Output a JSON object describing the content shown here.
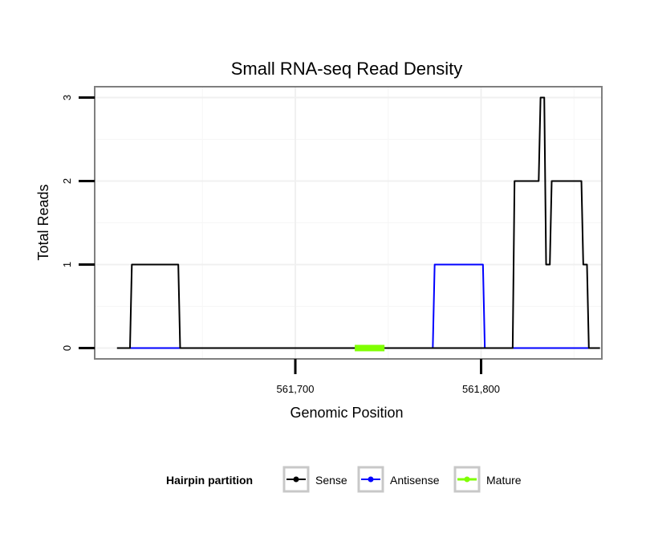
{
  "chart_data": {
    "type": "line",
    "title": "Small RNA-seq Read Density",
    "xlabel": "Genomic Position",
    "ylabel": "Total Reads",
    "xlim": [
      561592,
      561865
    ],
    "ylim": [
      -0.13,
      3.13
    ],
    "x_ticks": [
      561700,
      561800
    ],
    "x_tick_labels": [
      "561,700",
      "561,800"
    ],
    "y_ticks": [
      0,
      1,
      2,
      3
    ],
    "y_tick_labels": [
      "0",
      "1",
      "2",
      "3"
    ],
    "grid": true,
    "legend": {
      "title": "Hairpin partition",
      "position": "bottom"
    },
    "series": [
      {
        "name": "Sense",
        "color": "#000000",
        "x": [
          561604,
          561611,
          561612,
          561637,
          561638,
          561817,
          561818,
          561831,
          561832,
          561834,
          561835,
          561837,
          561838,
          561854,
          561855,
          561857,
          561858,
          561864
        ],
        "y": [
          0,
          0,
          1,
          1,
          0,
          0,
          2,
          2,
          3,
          3,
          1,
          1,
          2,
          2,
          1,
          1,
          0,
          0
        ]
      },
      {
        "name": "Antisense",
        "color": "#0000ff",
        "x": [
          561611,
          561638,
          561774,
          561775,
          561801,
          561802,
          561817,
          561859
        ],
        "y": [
          0,
          0,
          0,
          1,
          1,
          0,
          0,
          0
        ]
      },
      {
        "name": "Mature",
        "color": "#7fff00",
        "x": [
          561732,
          561748
        ],
        "y": [
          0,
          0
        ]
      }
    ]
  }
}
